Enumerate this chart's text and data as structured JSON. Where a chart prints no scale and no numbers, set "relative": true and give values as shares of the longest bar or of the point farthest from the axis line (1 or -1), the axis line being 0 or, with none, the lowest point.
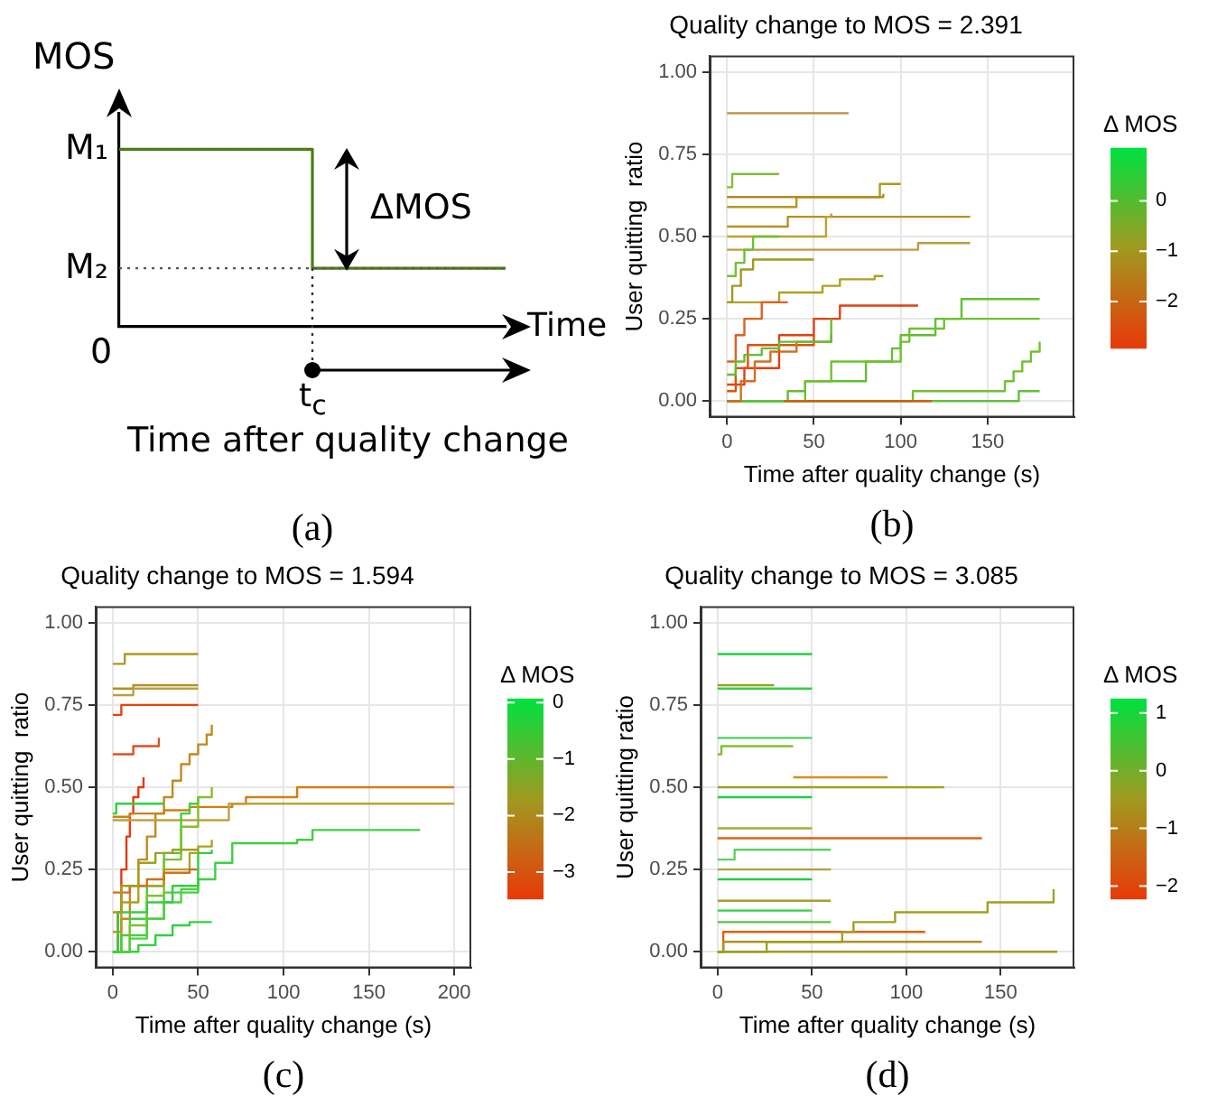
{
  "chart_data": [
    {
      "type": "step",
      "categories": [
        null,
        null,
        null
      ],
      "values": [
        1,
        0.33,
        0.33
      ],
      "color": "#4b7b12",
      "relative": true,
      "xlabel": "Time",
      "ylabel": "MOS",
      "ref_lines": [
        {
          "axis": "y",
          "value": 0.33,
          "color": "#555555",
          "line_style": "dotted"
        }
      ],
      "annotations": [
        "M₁",
        "M₂",
        "0",
        "ΔMOS",
        "t$_{c}$",
        "Time after quality change",
        "(a)"
      ]
    },
    {
      "type": "step",
      "title": "Quality change to MOS = 2.391",
      "xlabel": "Time after quality change (s)",
      "ylabel": "User quitting  ratio",
      "clabel": "Δ MOS",
      "xlim": [
        -10,
        200
      ],
      "xticks": [
        0,
        50,
        100,
        150
      ],
      "ylim": [
        -0.05,
        1.05
      ],
      "yticks": [
        {
          "value": 0,
          "label": "0.00"
        },
        {
          "value": 0.25,
          "label": "0.25"
        },
        {
          "value": 0.5,
          "label": "0.50"
        },
        {
          "value": 0.75,
          "label": "0.75"
        },
        {
          "value": 1,
          "label": "1.00"
        }
      ],
      "clim": [
        -2.9,
        1.05
      ],
      "cticks": [
        {
          "value": -2,
          "label": "−2"
        },
        {
          "value": -1,
          "label": "−1"
        },
        {
          "value": 0,
          "label": "0"
        }
      ],
      "grid": true,
      "series": [
        {
          "color": "#b89040",
          "x": [
            0,
            30,
            70
          ],
          "values": [
            0.875,
            0.875,
            0.875
          ]
        },
        {
          "color": "#80c030",
          "x": [
            0,
            3,
            30
          ],
          "values": [
            0.65,
            0.69,
            0.69
          ]
        },
        {
          "color": "#b09a20",
          "x": [
            0,
            40,
            88,
            100
          ],
          "values": [
            0.59,
            0.62,
            0.66,
            0.66
          ]
        },
        {
          "color": "#b08a20",
          "x": [
            0,
            88,
            90
          ],
          "values": [
            0.62,
            0.62,
            0.63
          ]
        },
        {
          "color": "#b89020",
          "x": [
            0,
            35,
            140
          ],
          "values": [
            0.53,
            0.56,
            0.56
          ]
        },
        {
          "color": "#c0a030",
          "x": [
            0,
            57,
            60
          ],
          "values": [
            0.5,
            0.56,
            0.57
          ]
        },
        {
          "color": "#c09a40",
          "x": [
            0,
            110,
            140
          ],
          "values": [
            0.46,
            0.48,
            0.48
          ]
        },
        {
          "color": "#60c030",
          "x": [
            0,
            35,
            45,
            80,
            95,
            100,
            120,
            135,
            180
          ],
          "values": [
            0,
            0.03,
            0.06,
            0.12,
            0.16,
            0.2,
            0.25,
            0.31,
            0.31
          ]
        },
        {
          "color": "#70c030",
          "x": [
            0,
            45,
            60,
            100,
            105,
            125,
            180
          ],
          "values": [
            0,
            0.06,
            0.12,
            0.18,
            0.22,
            0.25,
            0.25
          ]
        },
        {
          "color": "#70c030",
          "x": [
            0,
            107,
            160,
            165,
            170,
            175,
            180
          ],
          "values": [
            0,
            0.03,
            0.06,
            0.09,
            0.12,
            0.15,
            0.18
          ]
        },
        {
          "color": "#60c040",
          "x": [
            0,
            168,
            180
          ],
          "values": [
            0,
            0.03,
            0.03
          ]
        },
        {
          "color": "#e04010",
          "x": [
            0,
            10,
            30,
            50,
            65,
            110
          ],
          "values": [
            0.05,
            0.1,
            0.2,
            0.25,
            0.29,
            0.29
          ]
        },
        {
          "color": "#e05010",
          "x": [
            0,
            5,
            12,
            40,
            50
          ],
          "values": [
            0.03,
            0.1,
            0.17,
            0.17,
            0.2
          ]
        },
        {
          "color": "#b0a020",
          "x": [
            0,
            30,
            55,
            65,
            85,
            90
          ],
          "values": [
            0.3,
            0.33,
            0.35,
            0.37,
            0.38,
            0.38
          ]
        },
        {
          "color": "#70c030",
          "x": [
            0,
            5,
            10,
            15,
            30
          ],
          "values": [
            0.38,
            0.42,
            0.46,
            0.5,
            0.5
          ]
        },
        {
          "color": "#a09a20",
          "x": [
            0,
            3,
            8,
            15,
            50
          ],
          "values": [
            0.3,
            0.35,
            0.4,
            0.43,
            0.43
          ]
        },
        {
          "color": "#e06020",
          "x": [
            0,
            5,
            10,
            20,
            35
          ],
          "values": [
            0.12,
            0.2,
            0.25,
            0.3,
            0.3
          ]
        },
        {
          "color": "#d07020",
          "x": [
            0,
            8,
            16,
            25,
            40,
            60
          ],
          "values": [
            0,
            0.06,
            0.12,
            0.15,
            0.18,
            0.2
          ]
        },
        {
          "color": "#60c030",
          "x": [
            0,
            5,
            10,
            20,
            30,
            60
          ],
          "values": [
            0.08,
            0.12,
            0.14,
            0.16,
            0.18,
            0.25
          ]
        },
        {
          "color": "#d06010",
          "x": [
            33,
            118
          ],
          "values": [
            0,
            0
          ]
        }
      ],
      "annotations": [
        "(b)"
      ]
    },
    {
      "type": "step",
      "title": "Quality change to MOS = 1.594",
      "xlabel": "Time after quality change (s)",
      "ylabel": "User quitting  ratio",
      "clabel": "Δ MOS",
      "xlim": [
        -10,
        210
      ],
      "xticks": [
        0,
        50,
        100,
        150,
        200
      ],
      "ylim": [
        -0.05,
        1.05
      ],
      "yticks": [
        {
          "value": 0,
          "label": "0.00"
        },
        {
          "value": 0.25,
          "label": "0.25"
        },
        {
          "value": 0.5,
          "label": "0.50"
        },
        {
          "value": 0.75,
          "label": "0.75"
        },
        {
          "value": 1,
          "label": "1.00"
        }
      ],
      "clim": [
        -3.45,
        0.07
      ],
      "cticks": [
        {
          "value": -3,
          "label": "−3"
        },
        {
          "value": -2,
          "label": "−2"
        },
        {
          "value": -1,
          "label": "−1"
        },
        {
          "value": 0,
          "label": "0"
        }
      ],
      "grid": true,
      "series": [
        {
          "color": "#a89a20",
          "x": [
            0,
            7,
            50
          ],
          "values": [
            0.875,
            0.905,
            0.905
          ]
        },
        {
          "color": "#b09020",
          "x": [
            0,
            12,
            50
          ],
          "values": [
            0.8,
            0.81,
            0.81
          ]
        },
        {
          "color": "#b8a040",
          "x": [
            0,
            12,
            50
          ],
          "values": [
            0.78,
            0.8,
            0.8
          ]
        },
        {
          "color": "#e84010",
          "x": [
            0,
            5,
            50
          ],
          "values": [
            0.72,
            0.75,
            0.75
          ]
        },
        {
          "color": "#e05020",
          "x": [
            0,
            12,
            27
          ],
          "values": [
            0.6,
            0.625,
            0.65
          ]
        },
        {
          "color": "#c08a20",
          "x": [
            0,
            5,
            10,
            15,
            20,
            25,
            30,
            35,
            40,
            45,
            50,
            55,
            58
          ],
          "values": [
            0,
            0.1,
            0.2,
            0.28,
            0.35,
            0.42,
            0.47,
            0.52,
            0.57,
            0.6,
            0.63,
            0.66,
            0.69
          ]
        },
        {
          "color": "#e83810",
          "x": [
            0,
            3,
            5,
            8,
            10,
            12,
            15,
            18
          ],
          "values": [
            0,
            0.12,
            0.25,
            0.35,
            0.42,
            0.47,
            0.5,
            0.53
          ]
        },
        {
          "color": "#d08010",
          "x": [
            0,
            10,
            20,
            30,
            45,
            70,
            78,
            108,
            200
          ],
          "values": [
            0.41,
            0.42,
            0.42,
            0.43,
            0.44,
            0.45,
            0.47,
            0.5,
            0.5
          ]
        },
        {
          "color": "#c0a040",
          "x": [
            0,
            68,
            200
          ],
          "values": [
            0.4,
            0.45,
            0.45
          ]
        },
        {
          "color": "#40d040",
          "x": [
            0,
            10,
            20,
            30,
            50,
            60,
            70,
            108,
            117,
            180
          ],
          "values": [
            0,
            0.05,
            0.1,
            0.18,
            0.22,
            0.27,
            0.33,
            0.34,
            0.37,
            0.37
          ]
        },
        {
          "color": "#40d040",
          "x": [
            0,
            5,
            10,
            20,
            30,
            40,
            45,
            50
          ],
          "values": [
            0,
            0.05,
            0.1,
            0.2,
            0.3,
            0.42,
            0.45,
            0.47
          ]
        },
        {
          "color": "#80c030",
          "x": [
            0,
            10,
            20,
            30,
            40,
            50,
            58
          ],
          "values": [
            0,
            0.08,
            0.17,
            0.28,
            0.38,
            0.47,
            0.5
          ]
        },
        {
          "color": "#30d040",
          "x": [
            0,
            2,
            30
          ],
          "values": [
            0.42,
            0.45,
            0.45
          ]
        },
        {
          "color": "#30d040",
          "x": [
            0,
            15,
            25,
            35,
            45,
            58
          ],
          "values": [
            0,
            0.02,
            0.05,
            0.08,
            0.09,
            0.09
          ]
        },
        {
          "color": "#50d040",
          "x": [
            0,
            10,
            20,
            30,
            40,
            50
          ],
          "values": [
            0,
            0.04,
            0.1,
            0.15,
            0.19,
            0.22
          ]
        },
        {
          "color": "#b0a020",
          "x": [
            0,
            5,
            15,
            30,
            45,
            50,
            58
          ],
          "values": [
            0.06,
            0.15,
            0.2,
            0.25,
            0.3,
            0.32,
            0.34
          ]
        },
        {
          "color": "#d07020",
          "x": [
            0,
            10,
            20,
            30,
            45,
            50
          ],
          "values": [
            0.18,
            0.2,
            0.22,
            0.24,
            0.25,
            0.25
          ]
        },
        {
          "color": "#30d040",
          "x": [
            0,
            3,
            20,
            35,
            50,
            58
          ],
          "values": [
            0,
            0.12,
            0.15,
            0.2,
            0.3,
            0.31
          ]
        },
        {
          "color": "#a0a020",
          "x": [
            0,
            5,
            15,
            25,
            35,
            50
          ],
          "values": [
            0.12,
            0.2,
            0.27,
            0.3,
            0.31,
            0.31
          ]
        }
      ],
      "annotations": [
        "(c)"
      ]
    },
    {
      "type": "step",
      "title": "Quality change to MOS = 3.085",
      "xlabel": "Time after quality change (s)",
      "ylabel": "User quitting ratio",
      "clabel": "Δ MOS",
      "xlim": [
        -9,
        189
      ],
      "xticks": [
        0,
        50,
        100,
        150
      ],
      "ylim": [
        -0.05,
        1.05
      ],
      "yticks": [
        {
          "value": 0,
          "label": "0.00"
        },
        {
          "value": 0.25,
          "label": "0.25"
        },
        {
          "value": 0.5,
          "label": "0.50"
        },
        {
          "value": 0.75,
          "label": "0.75"
        },
        {
          "value": 1,
          "label": "1.00"
        }
      ],
      "clim": [
        -2.2,
        1.25
      ],
      "cticks": [
        {
          "value": -2,
          "label": "−2"
        },
        {
          "value": -1,
          "label": "−1"
        },
        {
          "value": 0,
          "label": "0"
        },
        {
          "value": 1,
          "label": "1"
        }
      ],
      "grid": true,
      "series": [
        {
          "color": "#20d040",
          "x": [
            0,
            50
          ],
          "values": [
            0.905,
            0.905
          ]
        },
        {
          "color": "#a09a20",
          "x": [
            0,
            30
          ],
          "values": [
            0.81,
            0.81
          ]
        },
        {
          "color": "#30d040",
          "x": [
            0,
            50
          ],
          "values": [
            0.8,
            0.8
          ]
        },
        {
          "color": "#50d060",
          "x": [
            0,
            50
          ],
          "values": [
            0.65,
            0.65
          ]
        },
        {
          "color": "#80c030",
          "x": [
            0,
            2,
            40
          ],
          "values": [
            0.6,
            0.625,
            0.625
          ]
        },
        {
          "color": "#d09020",
          "x": [
            40,
            90
          ],
          "values": [
            0.53,
            0.53
          ]
        },
        {
          "color": "#a0a020",
          "x": [
            0,
            120
          ],
          "values": [
            0.5,
            0.5
          ]
        },
        {
          "color": "#20d040",
          "x": [
            0,
            50
          ],
          "values": [
            0.47,
            0.47
          ]
        },
        {
          "color": "#a0b030",
          "x": [
            0,
            50
          ],
          "values": [
            0.375,
            0.375
          ]
        },
        {
          "color": "#e06010",
          "x": [
            0,
            140
          ],
          "values": [
            0.345,
            0.345
          ]
        },
        {
          "color": "#60d060",
          "x": [
            0,
            9,
            60
          ],
          "values": [
            0.28,
            0.31,
            0.31
          ]
        },
        {
          "color": "#b0a040",
          "x": [
            0,
            60
          ],
          "values": [
            0.25,
            0.25
          ]
        },
        {
          "color": "#20d040",
          "x": [
            0,
            50
          ],
          "values": [
            0.22,
            0.22
          ]
        },
        {
          "color": "#a0a030",
          "x": [
            0,
            60
          ],
          "values": [
            0.155,
            0.155
          ]
        },
        {
          "color": "#30d040",
          "x": [
            0,
            50
          ],
          "values": [
            0.125,
            0.125
          ]
        },
        {
          "color": "#60c040",
          "x": [
            0,
            60
          ],
          "values": [
            0.09,
            0.09
          ]
        },
        {
          "color": "#e06010",
          "x": [
            0,
            3,
            110
          ],
          "values": [
            0,
            0.06,
            0.06
          ]
        },
        {
          "color": "#b09020",
          "x": [
            0,
            3,
            140
          ],
          "values": [
            0,
            0.03,
            0.03
          ]
        },
        {
          "color": "#a0a020",
          "x": [
            0,
            26,
            66,
            72,
            94,
            143,
            178
          ],
          "values": [
            0,
            0.03,
            0.06,
            0.09,
            0.12,
            0.15,
            0.19
          ]
        },
        {
          "color": "#98a020",
          "x": [
            0,
            180
          ],
          "values": [
            0,
            0
          ]
        }
      ],
      "annotations": [
        "(d)"
      ]
    }
  ]
}
